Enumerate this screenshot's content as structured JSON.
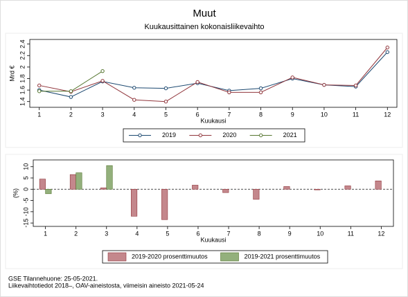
{
  "chart_data": [
    {
      "type": "line",
      "title": "Muut",
      "subtitle": "Kuukausittainen kokonaisliikevaihto",
      "y_label": "Mrd €",
      "x_label": "Kuukausi",
      "x": [
        1,
        2,
        3,
        4,
        5,
        6,
        7,
        8,
        9,
        10,
        11,
        12
      ],
      "xlim": [
        0.7,
        12.3
      ],
      "xticks": [
        1,
        2,
        3,
        4,
        5,
        6,
        7,
        8,
        9,
        10,
        11,
        12
      ],
      "ylim": [
        1.3,
        2.48
      ],
      "yticks": [
        1.4,
        1.6,
        1.8,
        2,
        2.2,
        2.4
      ],
      "grid": false,
      "legend": "bottom",
      "series": [
        {
          "name": "2019",
          "color": "#1a476f",
          "values": [
            1.6,
            1.48,
            1.75,
            1.64,
            1.63,
            1.72,
            1.59,
            1.63,
            1.8,
            1.69,
            1.66,
            2.26
          ]
        },
        {
          "name": "2020",
          "color": "#90353b",
          "values": [
            1.68,
            1.57,
            1.76,
            1.43,
            1.4,
            1.74,
            1.56,
            1.56,
            1.82,
            1.69,
            1.68,
            2.34
          ]
        },
        {
          "name": "2021",
          "color": "#55752f",
          "values": [
            1.58,
            1.58,
            1.93,
            null,
            null,
            null,
            null,
            null,
            null,
            null,
            null,
            null
          ]
        }
      ]
    },
    {
      "type": "bar",
      "y_label": "(%)",
      "x_label": "Kuukausi",
      "x": [
        1,
        2,
        3,
        4,
        5,
        6,
        7,
        8,
        9,
        10,
        11,
        12
      ],
      "xlim": [
        0.6,
        12.4
      ],
      "xticks": [
        1,
        2,
        3,
        4,
        5,
        6,
        7,
        8,
        9,
        10,
        11,
        12
      ],
      "ylim": [
        -16.5,
        13
      ],
      "yticks": [
        -15,
        -10,
        -5,
        0,
        5,
        10
      ],
      "grid": false,
      "zero_line": true,
      "legend": "bottom",
      "series": [
        {
          "name": "2019-2020 prosenttimuutos",
          "color": "#c4878c",
          "values": [
            4.5,
            6.5,
            0.6,
            -12,
            -13.5,
            1.8,
            -1.5,
            -4.5,
            1.2,
            -0.3,
            1.5,
            3.7
          ]
        },
        {
          "name": "2019-2021 prosenttimuutos",
          "color": "#93b07c",
          "values": [
            -2,
            7.3,
            10.5,
            null,
            null,
            null,
            null,
            null,
            null,
            null,
            null,
            null
          ]
        }
      ]
    }
  ],
  "notes": [
    "GSE Tilannehuone: 25-05-2021.",
    "Liikevaihtotiedot 2018–, OAV-aineistosta, viimeisin aineisto 2021-05-24"
  ]
}
